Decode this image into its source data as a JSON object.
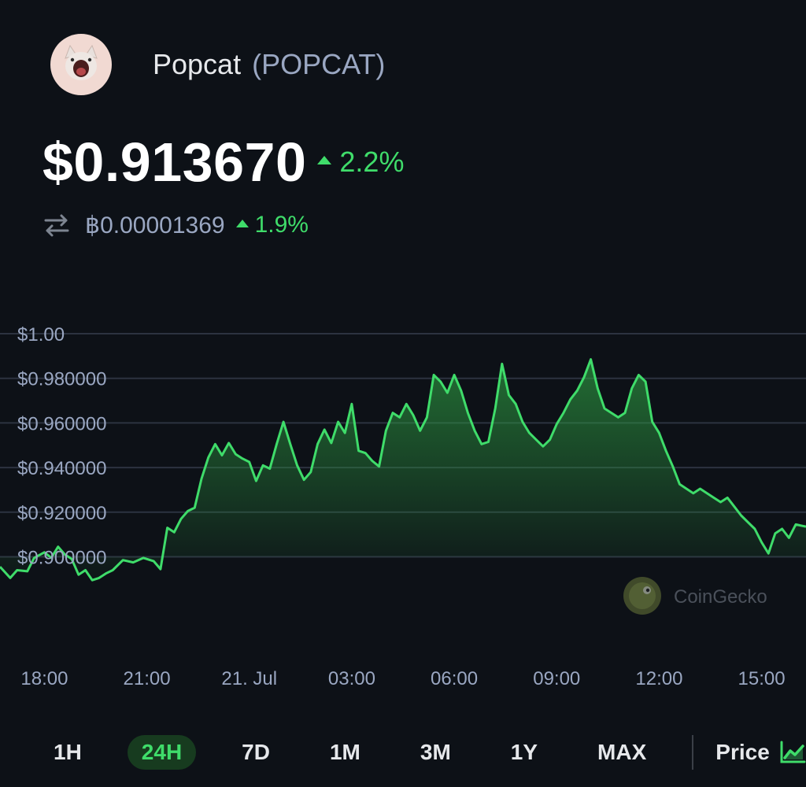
{
  "coin": {
    "name": "Popcat",
    "symbol": "(POPCAT)",
    "avatar_icon": "popcat-avatar-icon"
  },
  "price": {
    "usd": "$0.913670",
    "usd_change": "2.2%",
    "btc": "฿0.00001369",
    "btc_change": "1.9%",
    "change_color": "#3fdc6a"
  },
  "chart_data": {
    "type": "area",
    "color": "#3fdc6a",
    "y_ticks": [
      "$1.00",
      "$0.980000",
      "$0.960000",
      "$0.940000",
      "$0.920000",
      "$0.900000"
    ],
    "y_tick_values": [
      1.0,
      0.98,
      0.96,
      0.94,
      0.92,
      0.9
    ],
    "ylim": [
      0.885,
      1.0
    ],
    "x_ticks": [
      "18:00",
      "21:00",
      "21. Jul",
      "03:00",
      "06:00",
      "09:00",
      "12:00",
      "15:00"
    ],
    "x_tick_values": [
      0,
      3,
      6,
      9,
      12,
      15,
      18,
      21
    ],
    "xlim": [
      -1.3,
      22.3
    ],
    "grid": true,
    "watermark": "CoinGecko",
    "values": [
      [
        -1.3,
        0.8955
      ],
      [
        -1.0,
        0.8905
      ],
      [
        -0.8,
        0.894
      ],
      [
        -0.5,
        0.8935
      ],
      [
        -0.3,
        0.8995
      ],
      [
        0.0,
        0.902
      ],
      [
        0.2,
        0.8995
      ],
      [
        0.4,
        0.9045
      ],
      [
        0.6,
        0.901
      ],
      [
        0.8,
        0.899
      ],
      [
        1.0,
        0.892
      ],
      [
        1.2,
        0.894
      ],
      [
        1.4,
        0.8895
      ],
      [
        1.6,
        0.8905
      ],
      [
        1.8,
        0.8925
      ],
      [
        2.0,
        0.894
      ],
      [
        2.3,
        0.8985
      ],
      [
        2.6,
        0.8975
      ],
      [
        2.9,
        0.8995
      ],
      [
        3.2,
        0.898
      ],
      [
        3.4,
        0.8945
      ],
      [
        3.6,
        0.913
      ],
      [
        3.8,
        0.911
      ],
      [
        4.0,
        0.917
      ],
      [
        4.2,
        0.9205
      ],
      [
        4.4,
        0.922
      ],
      [
        4.6,
        0.935
      ],
      [
        4.8,
        0.9445
      ],
      [
        5.0,
        0.9505
      ],
      [
        5.2,
        0.9455
      ],
      [
        5.4,
        0.951
      ],
      [
        5.6,
        0.946
      ],
      [
        5.8,
        0.944
      ],
      [
        6.0,
        0.9425
      ],
      [
        6.2,
        0.934
      ],
      [
        6.4,
        0.941
      ],
      [
        6.6,
        0.9395
      ],
      [
        6.8,
        0.9505
      ],
      [
        7.0,
        0.9605
      ],
      [
        7.2,
        0.9505
      ],
      [
        7.4,
        0.941
      ],
      [
        7.6,
        0.9345
      ],
      [
        7.8,
        0.938
      ],
      [
        8.0,
        0.9505
      ],
      [
        8.2,
        0.957
      ],
      [
        8.4,
        0.951
      ],
      [
        8.6,
        0.9605
      ],
      [
        8.8,
        0.9555
      ],
      [
        9.0,
        0.9685
      ],
      [
        9.2,
        0.9475
      ],
      [
        9.4,
        0.9465
      ],
      [
        9.6,
        0.943
      ],
      [
        9.8,
        0.9405
      ],
      [
        10.0,
        0.9565
      ],
      [
        10.2,
        0.9645
      ],
      [
        10.4,
        0.9625
      ],
      [
        10.6,
        0.9685
      ],
      [
        10.8,
        0.9635
      ],
      [
        11.0,
        0.9565
      ],
      [
        11.2,
        0.9625
      ],
      [
        11.4,
        0.9815
      ],
      [
        11.6,
        0.9785
      ],
      [
        11.8,
        0.9735
      ],
      [
        12.0,
        0.9815
      ],
      [
        12.2,
        0.9745
      ],
      [
        12.4,
        0.9645
      ],
      [
        12.6,
        0.9565
      ],
      [
        12.8,
        0.9505
      ],
      [
        13.0,
        0.9515
      ],
      [
        13.2,
        0.9665
      ],
      [
        13.4,
        0.9865
      ],
      [
        13.6,
        0.9725
      ],
      [
        13.8,
        0.9685
      ],
      [
        14.0,
        0.9605
      ],
      [
        14.2,
        0.9555
      ],
      [
        14.4,
        0.9525
      ],
      [
        14.6,
        0.9495
      ],
      [
        14.8,
        0.9525
      ],
      [
        15.0,
        0.9595
      ],
      [
        15.2,
        0.9645
      ],
      [
        15.4,
        0.9705
      ],
      [
        15.6,
        0.9745
      ],
      [
        15.8,
        0.9805
      ],
      [
        16.0,
        0.9885
      ],
      [
        16.2,
        0.9755
      ],
      [
        16.4,
        0.9665
      ],
      [
        16.6,
        0.9645
      ],
      [
        16.8,
        0.9625
      ],
      [
        17.0,
        0.9645
      ],
      [
        17.2,
        0.9755
      ],
      [
        17.4,
        0.9815
      ],
      [
        17.6,
        0.9785
      ],
      [
        17.8,
        0.9605
      ],
      [
        18.0,
        0.9555
      ],
      [
        18.2,
        0.9475
      ],
      [
        18.4,
        0.9405
      ],
      [
        18.6,
        0.9325
      ],
      [
        18.8,
        0.9305
      ],
      [
        19.0,
        0.9285
      ],
      [
        19.2,
        0.9305
      ],
      [
        19.4,
        0.9285
      ],
      [
        19.6,
        0.9265
      ],
      [
        19.8,
        0.9245
      ],
      [
        20.0,
        0.9265
      ],
      [
        20.2,
        0.9225
      ],
      [
        20.4,
        0.9185
      ],
      [
        20.6,
        0.9155
      ],
      [
        20.8,
        0.9125
      ],
      [
        21.0,
        0.9065
      ],
      [
        21.2,
        0.9015
      ],
      [
        21.4,
        0.9105
      ],
      [
        21.6,
        0.9125
      ],
      [
        21.8,
        0.9085
      ],
      [
        22.0,
        0.9145
      ],
      [
        22.3,
        0.9135
      ]
    ]
  },
  "time_ranges": [
    "1H",
    "24H",
    "7D",
    "1M",
    "3M",
    "1Y",
    "MAX"
  ],
  "active_range": "24H",
  "metric_toggle": {
    "label": "Price",
    "icon": "line-chart-icon",
    "caret_icon": "caret-up-icon"
  }
}
